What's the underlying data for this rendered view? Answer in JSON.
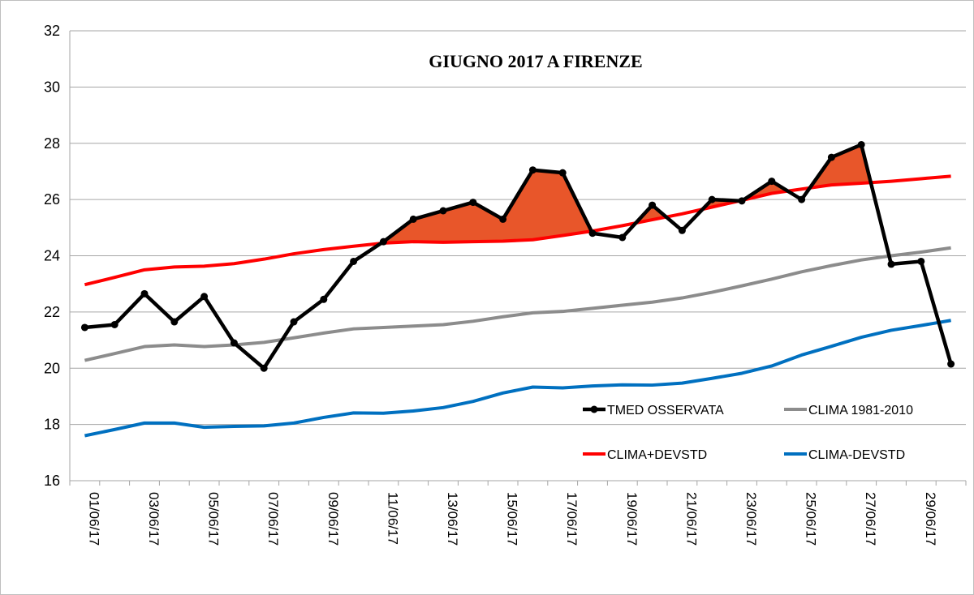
{
  "chart_data": {
    "type": "line",
    "title": "GIUGNO 2017 A FIRENZE",
    "xlabel": "",
    "ylabel": "",
    "ylim": [
      16,
      32
    ],
    "yticks": [
      16,
      18,
      20,
      22,
      24,
      26,
      28,
      30,
      32
    ],
    "grid": true,
    "categories": [
      "01/06/17",
      "02/06/17",
      "03/06/17",
      "04/06/17",
      "05/06/17",
      "06/06/17",
      "07/06/17",
      "08/06/17",
      "09/06/17",
      "10/06/17",
      "11/06/17",
      "12/06/17",
      "13/06/17",
      "14/06/17",
      "15/06/17",
      "16/06/17",
      "17/06/17",
      "18/06/17",
      "19/06/17",
      "20/06/17",
      "21/06/17",
      "22/06/17",
      "23/06/17",
      "24/06/17",
      "25/06/17",
      "26/06/17",
      "27/06/17",
      "28/06/17",
      "29/06/17",
      "30/06/17"
    ],
    "tick_labels": [
      "01/06/17",
      "03/06/17",
      "05/06/17",
      "07/06/17",
      "09/06/17",
      "11/06/17",
      "13/06/17",
      "15/06/17",
      "17/06/17",
      "19/06/17",
      "21/06/17",
      "23/06/17",
      "25/06/17",
      "27/06/17",
      "29/06/17"
    ],
    "series": [
      {
        "name": "TMED OSSERVATA",
        "color": "#000000",
        "markers": true,
        "values": [
          21.45,
          21.55,
          22.65,
          21.65,
          22.55,
          20.9,
          20.0,
          21.65,
          22.45,
          23.8,
          24.5,
          25.3,
          25.6,
          25.9,
          25.3,
          27.05,
          26.95,
          24.8,
          24.65,
          25.8,
          24.9,
          26.0,
          25.95,
          26.65,
          26.0,
          27.5,
          27.95,
          23.7,
          23.8,
          20.15
        ]
      },
      {
        "name": "CLIMA 1981-2010",
        "color": "#8c8c8c",
        "values": [
          20.28,
          20.52,
          20.77,
          20.83,
          20.77,
          20.83,
          20.92,
          21.08,
          21.25,
          21.4,
          21.45,
          21.5,
          21.55,
          21.67,
          21.83,
          21.97,
          22.02,
          22.13,
          22.24,
          22.35,
          22.5,
          22.7,
          22.93,
          23.17,
          23.43,
          23.65,
          23.85,
          24.0,
          24.13,
          24.28
        ]
      },
      {
        "name": "CLIMA+DEVSTD",
        "color": "#ff0000",
        "values": [
          22.97,
          23.23,
          23.5,
          23.6,
          23.63,
          23.72,
          23.88,
          24.07,
          24.22,
          24.34,
          24.45,
          24.5,
          24.48,
          24.5,
          24.52,
          24.57,
          24.72,
          24.88,
          25.07,
          25.28,
          25.49,
          25.73,
          25.97,
          26.22,
          26.37,
          26.52,
          26.58,
          26.65,
          26.74,
          26.83
        ]
      },
      {
        "name": "CLIMA-DEVSTD",
        "color": "#0070c0",
        "values": [
          17.6,
          17.82,
          18.05,
          18.05,
          17.9,
          17.93,
          17.95,
          18.05,
          18.25,
          18.41,
          18.4,
          18.48,
          18.6,
          18.82,
          19.12,
          19.33,
          19.3,
          19.37,
          19.41,
          19.4,
          19.47,
          19.64,
          19.82,
          20.08,
          20.47,
          20.78,
          21.1,
          21.35,
          21.52,
          21.7
        ]
      }
    ],
    "fill": {
      "between": [
        "TMED OSSERVATA",
        "CLIMA+DEVSTD"
      ],
      "where": "above",
      "color": "#e8562a"
    },
    "legend": {
      "placement": "bottom-right",
      "entries": [
        "TMED OSSERVATA",
        "CLIMA 1981-2010",
        "CLIMA+DEVSTD",
        "CLIMA-DEVSTD"
      ]
    }
  }
}
